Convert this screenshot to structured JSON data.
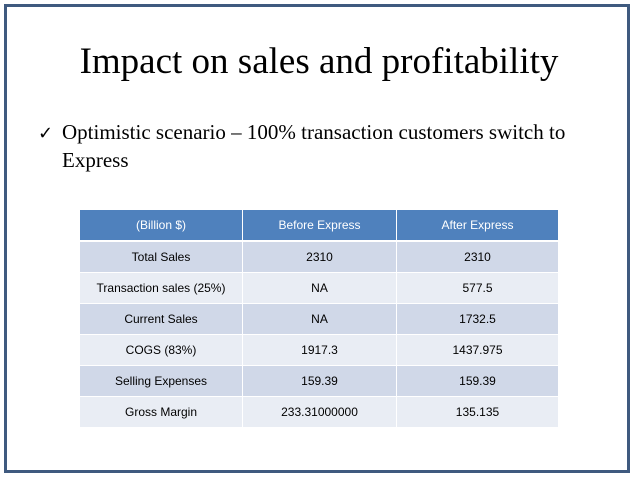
{
  "slide": {
    "title": "Impact on sales and profitability",
    "bullet": {
      "icon": "checkmark-icon",
      "glyph": "✓",
      "line1": "Optimistic scenario – 100% transaction customers switch to",
      "line2": "Express"
    },
    "colors": {
      "frame": "#3f5a7f",
      "header_bg": "#4f81bd",
      "row_odd_bg": "#d0d8e8",
      "row_even_bg": "#e9edf4"
    }
  },
  "table": {
    "headers": [
      "(Billion $)",
      "Before Express",
      "After Express"
    ],
    "rows": [
      [
        "Total  Sales",
        "2310",
        "2310"
      ],
      [
        "Transaction sales (25%)",
        "NA",
        "577.5"
      ],
      [
        "Current Sales",
        "NA",
        "1732.5"
      ],
      [
        "COGS (83%)",
        "1917.3",
        "1437.975"
      ],
      [
        "Selling Expenses",
        "159.39",
        "159.39"
      ],
      [
        "Gross Margin",
        "233.31000000",
        "135.135"
      ]
    ]
  }
}
